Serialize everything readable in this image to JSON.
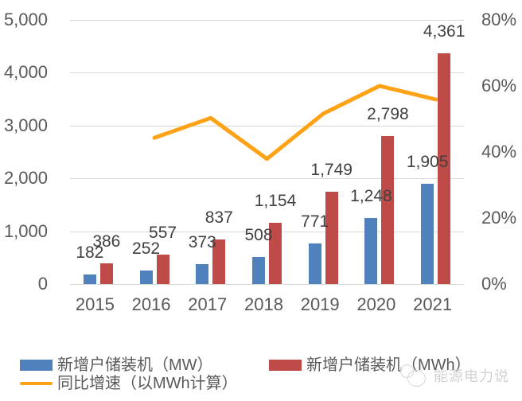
{
  "chart_data": {
    "type": "combo-bar-line",
    "categories": [
      "2015",
      "2016",
      "2017",
      "2018",
      "2019",
      "2020",
      "2021"
    ],
    "series": [
      {
        "name": "新增户储装机（MW）",
        "type": "bar",
        "color": "#4F81BD",
        "values": [
          182,
          252,
          373,
          508,
          771,
          1248,
          1905
        ],
        "labels": [
          "182",
          "252",
          "373",
          "508",
          "771",
          "1,248",
          "1,905"
        ]
      },
      {
        "name": "新增户储装机（MWh）",
        "type": "bar",
        "color": "#BE4B48",
        "values": [
          386,
          557,
          837,
          1154,
          1749,
          2798,
          4361
        ],
        "labels": [
          "386",
          "557",
          "837",
          "1,154",
          "1,749",
          "2,798",
          "4,361"
        ]
      },
      {
        "name": "同比增速（以MWh计算）",
        "type": "line",
        "axis": "right",
        "color": "#FFA215",
        "values": [
          null,
          44.3,
          50.3,
          37.9,
          51.6,
          60.0,
          55.9
        ]
      }
    ],
    "left_axis": {
      "min": 0,
      "max": 5000,
      "ticks": [
        "0",
        "1,000",
        "2,000",
        "3,000",
        "4,000",
        "5,000"
      ]
    },
    "right_axis": {
      "min": 0,
      "max": 80,
      "ticks": [
        "0%",
        "20%",
        "40%",
        "60%",
        "80%"
      ]
    },
    "grid": true,
    "legend_position": "bottom-left"
  },
  "legend": {
    "items": [
      {
        "label": "新增户储装机（MW）",
        "swatch": "bar",
        "color": "#4F81BD"
      },
      {
        "label": "新增户储装机（MWh）",
        "swatch": "bar",
        "color": "#BE4B48"
      },
      {
        "label": "同比增速（以MWh计算）",
        "swatch": "line",
        "color": "#FFA215"
      }
    ]
  },
  "watermark": {
    "text": "能源电力说"
  },
  "colors": {
    "axis_text": "#595959",
    "data_label": "#404040",
    "gridline": "#D9D9D9",
    "background": "#FFFFFF"
  }
}
